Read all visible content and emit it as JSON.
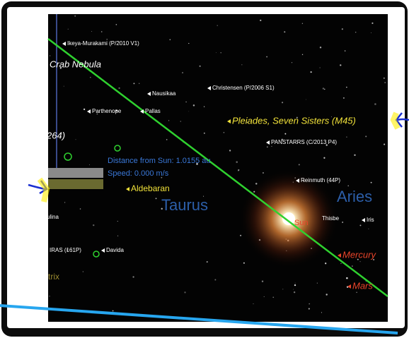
{
  "sky_view": {
    "labels": [
      "Ikeya-Murakami (P/2010 V1)",
      "Crab Nebula",
      "Christensen (P/2006 S1)",
      "Nausikaa",
      "Parthenope",
      "Pallas",
      "Pleiades, Seven Sisters (M45)",
      "264)",
      "PANSTARRS (C/2013 P4)",
      "Distance from Sun: 1.0155 au",
      "Speed: 0.000 m/s",
      "Aldebaran",
      "Reinmuth (44P)",
      "Taurus",
      "Aries",
      "Sun",
      "Thisbe",
      "Iris",
      "ulina",
      "IRAS (161P)",
      "Davida",
      "Mercury",
      "Mars",
      "trix"
    ]
  }
}
